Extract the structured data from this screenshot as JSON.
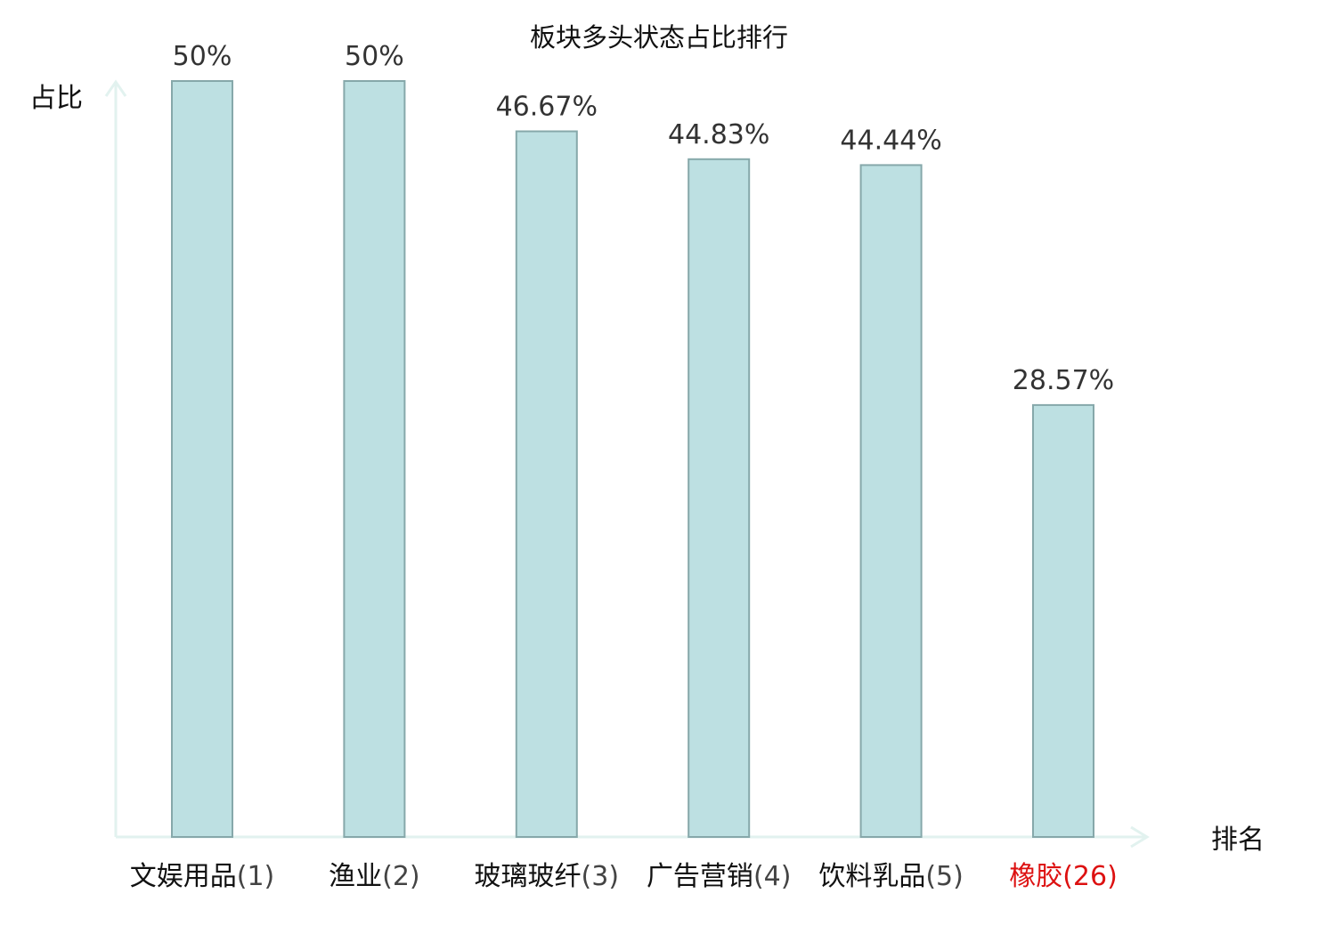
{
  "chart_data": {
    "type": "bar",
    "title": "板块多头状态占比排行",
    "ylabel": "占比",
    "xlabel": "排名",
    "categories": [
      {
        "name": "文娱用品",
        "rank": "(1)",
        "highlight": false
      },
      {
        "name": "渔业",
        "rank": "(2)",
        "highlight": false
      },
      {
        "name": "玻璃玻纤",
        "rank": "(3)",
        "highlight": false
      },
      {
        "name": "广告营销",
        "rank": "(4)",
        "highlight": false
      },
      {
        "name": "饮料乳品",
        "rank": "(5)",
        "highlight": false
      },
      {
        "name": "橡胶",
        "rank": "(26)",
        "highlight": true
      }
    ],
    "values": [
      50,
      50,
      46.67,
      44.83,
      44.44,
      28.57
    ],
    "value_labels": [
      "50%",
      "50%",
      "46.67%",
      "44.83%",
      "44.44%",
      "28.57%"
    ],
    "ylim": [
      0,
      50
    ],
    "grid": false,
    "colors": {
      "bar_fill": "#bde0e2",
      "bar_stroke": "#86a8aa",
      "axis": "#e2f2ef",
      "name_text": "#111111",
      "rank_text": "#444444",
      "highlight_text": "#dd1111"
    }
  }
}
